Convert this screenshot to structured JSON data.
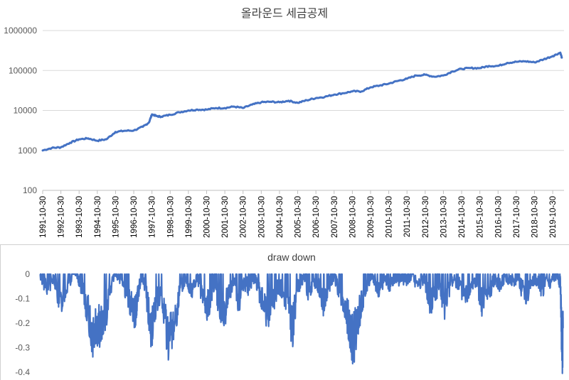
{
  "chart_data": [
    {
      "type": "line",
      "title": "올라운드 세금공제",
      "y_scale": "log",
      "ylim": [
        100,
        1000000
      ],
      "grid": true,
      "y_ticks": [
        "100",
        "1000",
        "10000",
        "100000",
        "1000000"
      ],
      "x_ticks": [
        "1991-10-30",
        "1992-10-30",
        "1993-10-30",
        "1994-10-30",
        "1995-10-30",
        "1996-10-30",
        "1997-10-30",
        "1998-10-30",
        "1999-10-30",
        "2000-10-30",
        "2001-10-30",
        "2002-10-30",
        "2003-10-30",
        "2004-10-30",
        "2005-10-30",
        "2006-10-30",
        "2007-10-30",
        "2008-10-30",
        "2009-10-30",
        "2010-10-30",
        "2011-10-30",
        "2012-10-30",
        "2013-10-30",
        "2014-10-30",
        "2015-10-30",
        "2016-10-30",
        "2017-10-30",
        "2018-10-30",
        "2019-10-30"
      ],
      "color": "#4472C4",
      "series": [
        {
          "x": [
            "1991-10-30",
            "1992-04-30",
            "1992-10-30",
            "1993-04-30",
            "1993-10-30",
            "1994-04-30",
            "1994-10-30",
            "1995-04-30",
            "1995-10-30",
            "1996-04-30",
            "1996-10-30",
            "1997-04-30",
            "1997-08-30",
            "1997-10-30",
            "1998-01-30",
            "1998-04-30",
            "1998-10-30",
            "1999-04-30",
            "1999-10-30",
            "2000-04-30",
            "2000-10-30",
            "2001-04-30",
            "2001-10-30",
            "2002-04-30",
            "2002-10-30",
            "2003-04-30",
            "2003-10-30",
            "2004-04-30",
            "2004-10-30",
            "2005-04-30",
            "2005-10-30",
            "2006-04-30",
            "2006-10-30",
            "2007-04-30",
            "2007-10-30",
            "2008-04-30",
            "2008-10-30",
            "2009-04-30",
            "2009-10-30",
            "2010-04-30",
            "2010-10-30",
            "2011-04-30",
            "2011-10-30",
            "2012-04-30",
            "2012-10-30",
            "2013-04-30",
            "2013-10-30",
            "2014-04-30",
            "2014-10-30",
            "2015-04-30",
            "2015-10-30",
            "2016-04-30",
            "2016-10-30",
            "2017-04-30",
            "2017-10-30",
            "2018-04-30",
            "2018-10-30",
            "2019-04-30",
            "2019-10-30",
            "2020-03-30",
            "2020-04-30"
          ],
          "values": [
            1000,
            1150,
            1200,
            1550,
            1900,
            2000,
            1750,
            1900,
            2900,
            3100,
            3150,
            3900,
            5000,
            8000,
            7200,
            7000,
            7800,
            9000,
            10000,
            10500,
            10500,
            11500,
            11500,
            12500,
            11500,
            14000,
            16000,
            16500,
            16000,
            17500,
            15500,
            18000,
            20500,
            22000,
            25000,
            27000,
            30000,
            30000,
            38000,
            42000,
            47000,
            55000,
            62000,
            75000,
            78000,
            70000,
            75000,
            95000,
            110000,
            115000,
            115000,
            130000,
            130000,
            155000,
            165000,
            170000,
            160000,
            190000,
            230000,
            280000,
            210000
          ]
        }
      ]
    },
    {
      "type": "line",
      "title": "draw down",
      "ylim": [
        -0.4,
        0
      ],
      "grid": false,
      "y_ticks": [
        "0",
        "-0.1",
        "-0.2",
        "-0.3",
        "-0.4"
      ],
      "color": "#4472C4",
      "series": [
        {
          "x": [
            1991.83,
            1992.2,
            1992.6,
            1992.95,
            1993.4,
            1993.85,
            1994.1,
            1994.35,
            1994.7,
            1995.0,
            1995.2,
            1995.45,
            1995.9,
            1996.3,
            1996.6,
            1996.8,
            1997.0,
            1997.15,
            1997.4,
            1997.6,
            1997.9,
            1998.1,
            1998.4,
            1998.7,
            1998.9,
            1999.2,
            1999.5,
            1999.8,
            2000.1,
            2000.4,
            2000.65,
            2000.9,
            2001.1,
            2001.35,
            2001.6,
            2001.9,
            2002.1,
            2002.4,
            2002.7,
            2002.85,
            2003.2,
            2003.6,
            2003.9,
            2004.2,
            2004.5,
            2004.8,
            2005.1,
            2005.4,
            2005.6,
            2005.85,
            2006.2,
            2006.5,
            2006.75,
            2007.0,
            2007.3,
            2007.6,
            2007.9,
            2008.2,
            2008.5,
            2008.7,
            2008.9,
            2009.2,
            2009.45,
            2009.7,
            2009.9,
            2010.3,
            2010.6,
            2010.9,
            2011.2,
            2011.5,
            2011.8,
            2012.1,
            2012.5,
            2012.8,
            2013.1,
            2013.4,
            2013.6,
            2013.85,
            2014.1,
            2014.4,
            2014.8,
            2015.1,
            2015.4,
            2015.7,
            2015.95,
            2016.3,
            2016.6,
            2016.9,
            2017.2,
            2017.6,
            2017.9,
            2018.1,
            2018.4,
            2018.7,
            2018.95,
            2019.2,
            2019.6,
            2019.9,
            2020.05,
            2020.2,
            2020.3,
            2020.35
          ],
          "values": [
            0,
            -0.06,
            -0.02,
            -0.12,
            -0.03,
            0,
            -0.05,
            -0.12,
            -0.25,
            -0.22,
            -0.19,
            -0.15,
            0,
            -0.02,
            -0.08,
            -0.12,
            -0.16,
            -0.1,
            0,
            -0.06,
            -0.24,
            -0.13,
            -0.08,
            -0.2,
            -0.27,
            -0.18,
            -0.06,
            -0.03,
            -0.06,
            -0.02,
            -0.07,
            -0.15,
            -0.1,
            -0.03,
            -0.12,
            -0.16,
            -0.08,
            -0.03,
            -0.12,
            -0.04,
            -0.05,
            -0.02,
            -0.1,
            -0.16,
            -0.12,
            -0.05,
            -0.07,
            -0.14,
            -0.22,
            -0.06,
            -0.01,
            -0.08,
            -0.02,
            -0.05,
            -0.12,
            -0.04,
            -0.02,
            -0.08,
            -0.14,
            -0.2,
            -0.28,
            -0.17,
            -0.1,
            -0.04,
            0,
            -0.06,
            -0.02,
            -0.04,
            -0.01,
            -0.03,
            -0.02,
            -0.01,
            -0.04,
            -0.02,
            -0.13,
            -0.07,
            -0.05,
            -0.14,
            -0.06,
            -0.02,
            -0.06,
            -0.09,
            -0.03,
            -0.05,
            -0.12,
            -0.08,
            -0.02,
            -0.04,
            -0.01,
            -0.03,
            -0.01,
            -0.06,
            -0.09,
            -0.03,
            -0.02,
            -0.06,
            -0.03,
            -0.01,
            0,
            -0.04,
            -0.33,
            -0.22
          ]
        }
      ]
    }
  ]
}
